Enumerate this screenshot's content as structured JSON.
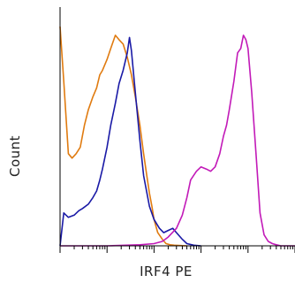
{
  "chart_data": {
    "type": "line",
    "chart_kind": "flow cytometry histogram overlay",
    "xlabel": "IRF4 PE",
    "ylabel": "Count",
    "title": "",
    "x_scale": "log",
    "xlim": [
      1,
      100000
    ],
    "ylim": [
      0,
      100
    ],
    "grid": false,
    "legend": "none",
    "y_ticks_labeled": false,
    "x_ticks_labeled": false,
    "series": [
      {
        "color": "#e07b10",
        "x": [
          1,
          1.2,
          1.5,
          1.8,
          2.2,
          2.7,
          3.3,
          4,
          5,
          6,
          7,
          8,
          10,
          12,
          15,
          18,
          22,
          27,
          33,
          40,
          50,
          60,
          70,
          80,
          90,
          100,
          120,
          150,
          180,
          220,
          270,
          330,
          400,
          500
        ],
        "y": [
          100,
          75,
          42,
          40,
          42,
          45,
          55,
          62,
          68,
          72,
          78,
          80,
          85,
          90,
          96,
          94,
          92,
          86,
          78,
          68,
          55,
          42,
          32,
          24,
          18,
          12,
          6,
          3,
          1,
          0.5,
          0.3,
          0.2,
          0.1,
          0
        ]
      },
      {
        "color": "#1a1aa6",
        "x": [
          1,
          1.2,
          1.5,
          2,
          2.5,
          3,
          4,
          5,
          6,
          7,
          8,
          10,
          12,
          15,
          18,
          22,
          27,
          30,
          33,
          40,
          50,
          60,
          80,
          100,
          130,
          160,
          200,
          250,
          300,
          400,
          500,
          700,
          1000
        ],
        "y": [
          0,
          15,
          13,
          14,
          16,
          17,
          19,
          22,
          25,
          30,
          35,
          45,
          55,
          65,
          74,
          80,
          88,
          95,
          89,
          70,
          48,
          32,
          18,
          12,
          8,
          6,
          7,
          8,
          6,
          3,
          1,
          0.3,
          0
        ]
      },
      {
        "color": "#c21ab8",
        "x": [
          1,
          10,
          50,
          100,
          150,
          200,
          300,
          400,
          500,
          600,
          800,
          1000,
          1300,
          1600,
          2000,
          2500,
          3000,
          3500,
          4000,
          5000,
          6000,
          7000,
          8000,
          9000,
          10000,
          12000,
          15000,
          18000,
          22000,
          27000,
          33000,
          40000,
          50000,
          100000
        ],
        "y": [
          0,
          0,
          0.5,
          1,
          2,
          4,
          8,
          14,
          22,
          30,
          34,
          36,
          35,
          34,
          36,
          42,
          50,
          55,
          62,
          75,
          88,
          90,
          96,
          94,
          90,
          70,
          40,
          15,
          5,
          2,
          1,
          0.5,
          0,
          0
        ]
      }
    ]
  }
}
